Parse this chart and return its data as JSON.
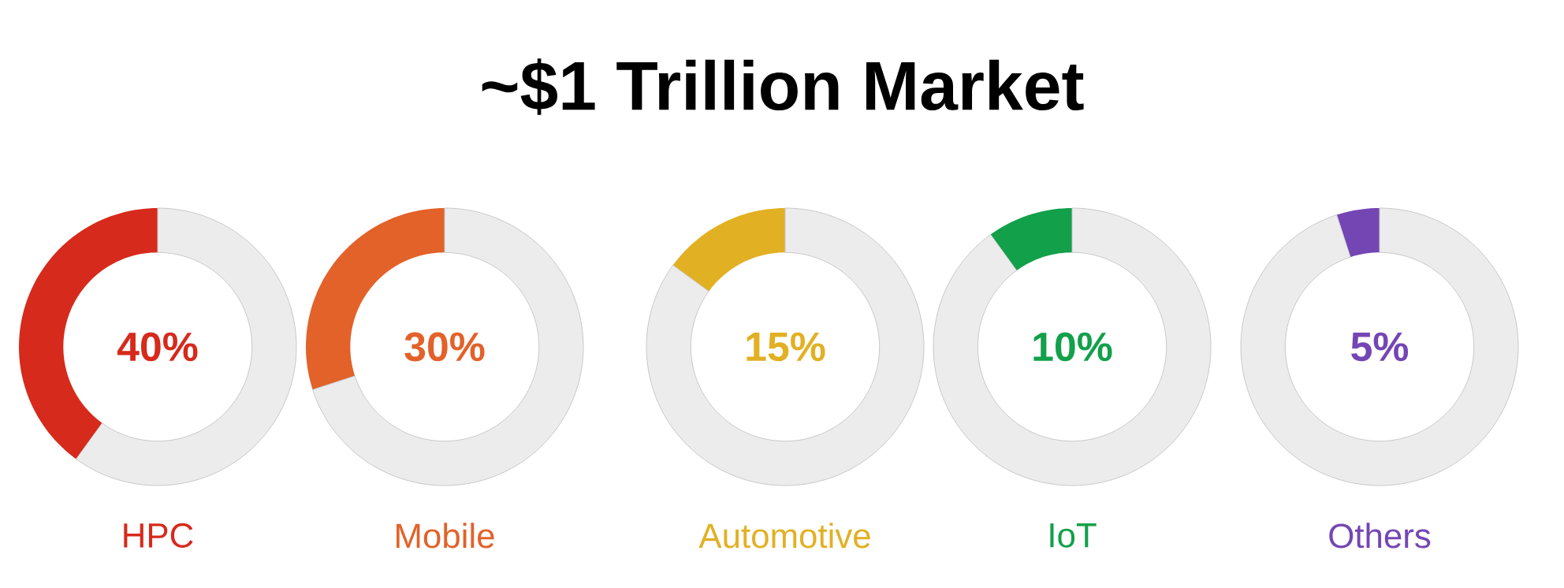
{
  "chart_data": [
    {
      "type": "other",
      "title": "~$1 Trillion Market"
    },
    {
      "type": "donut",
      "xlabel": "HPC",
      "categories": [
        null,
        null
      ],
      "values": [
        40,
        60
      ],
      "colors": [
        "#d62a1c",
        "#ececec"
      ],
      "annotations": [
        "40%"
      ]
    },
    {
      "type": "donut",
      "xlabel": "Mobile",
      "categories": [
        null,
        null
      ],
      "values": [
        30,
        70
      ],
      "colors": [
        "#e2622a",
        "#ececec"
      ],
      "annotations": [
        "30%"
      ]
    },
    {
      "type": "donut",
      "xlabel": "Automotive",
      "categories": [
        null,
        null
      ],
      "values": [
        15,
        85
      ],
      "colors": [
        "#e2b023",
        "#ececec"
      ],
      "annotations": [
        "15%"
      ]
    },
    {
      "type": "donut",
      "xlabel": "IoT",
      "categories": [
        null,
        null
      ],
      "values": [
        10,
        90
      ],
      "colors": [
        "#12a04a",
        "#ececec"
      ],
      "annotations": [
        "10%"
      ]
    },
    {
      "type": "donut",
      "xlabel": "Others",
      "categories": [
        null,
        null
      ],
      "values": [
        5,
        95
      ],
      "colors": [
        "#7446b4",
        "#ececec"
      ],
      "annotations": [
        "5%"
      ]
    }
  ]
}
